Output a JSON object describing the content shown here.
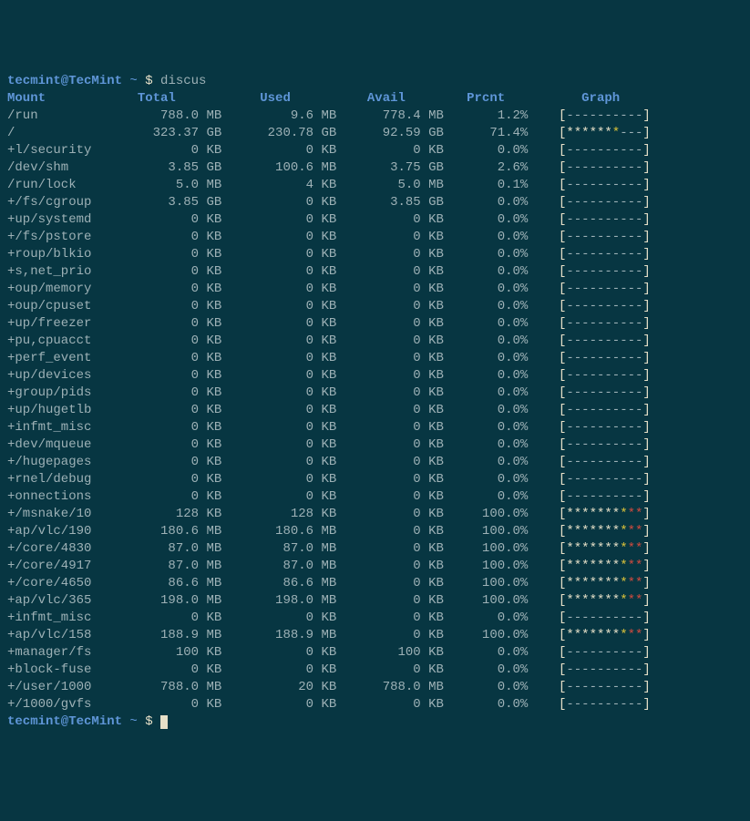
{
  "prompt": {
    "user": "tecmint@TecMint",
    "path": "~",
    "sep": "$",
    "cmd": "discus"
  },
  "headers": {
    "mount": "Mount",
    "total": "Total",
    "used": "Used",
    "avail": "Avail",
    "prcnt": "Prcnt",
    "graph": "Graph"
  },
  "rows": [
    {
      "mount": "/run",
      "total": "788.0 MB",
      "used": "9.6 MB",
      "avail": "778.4 MB",
      "prcnt": "1.2%",
      "gpat": "----------"
    },
    {
      "mount": "/",
      "total": "323.37 GB",
      "used": "230.78 GB",
      "avail": "92.59 GB",
      "prcnt": "71.4%",
      "gpat": "wwwwwwy---"
    },
    {
      "mount": "+l/security",
      "total": "0 KB",
      "used": "0 KB",
      "avail": "0 KB",
      "prcnt": "0.0%",
      "gpat": "----------"
    },
    {
      "mount": "/dev/shm",
      "total": "3.85 GB",
      "used": "100.6 MB",
      "avail": "3.75 GB",
      "prcnt": "2.6%",
      "gpat": "----------"
    },
    {
      "mount": "/run/lock",
      "total": "5.0 MB",
      "used": "4 KB",
      "avail": "5.0 MB",
      "prcnt": "0.1%",
      "gpat": "----------"
    },
    {
      "mount": "+/fs/cgroup",
      "total": "3.85 GB",
      "used": "0 KB",
      "avail": "3.85 GB",
      "prcnt": "0.0%",
      "gpat": "----------"
    },
    {
      "mount": "+up/systemd",
      "total": "0 KB",
      "used": "0 KB",
      "avail": "0 KB",
      "prcnt": "0.0%",
      "gpat": "----------"
    },
    {
      "mount": "+/fs/pstore",
      "total": "0 KB",
      "used": "0 KB",
      "avail": "0 KB",
      "prcnt": "0.0%",
      "gpat": "----------"
    },
    {
      "mount": "+roup/blkio",
      "total": "0 KB",
      "used": "0 KB",
      "avail": "0 KB",
      "prcnt": "0.0%",
      "gpat": "----------"
    },
    {
      "mount": "+s,net_prio",
      "total": "0 KB",
      "used": "0 KB",
      "avail": "0 KB",
      "prcnt": "0.0%",
      "gpat": "----------"
    },
    {
      "mount": "+oup/memory",
      "total": "0 KB",
      "used": "0 KB",
      "avail": "0 KB",
      "prcnt": "0.0%",
      "gpat": "----------"
    },
    {
      "mount": "+oup/cpuset",
      "total": "0 KB",
      "used": "0 KB",
      "avail": "0 KB",
      "prcnt": "0.0%",
      "gpat": "----------"
    },
    {
      "mount": "+up/freezer",
      "total": "0 KB",
      "used": "0 KB",
      "avail": "0 KB",
      "prcnt": "0.0%",
      "gpat": "----------"
    },
    {
      "mount": "+pu,cpuacct",
      "total": "0 KB",
      "used": "0 KB",
      "avail": "0 KB",
      "prcnt": "0.0%",
      "gpat": "----------"
    },
    {
      "mount": "+perf_event",
      "total": "0 KB",
      "used": "0 KB",
      "avail": "0 KB",
      "prcnt": "0.0%",
      "gpat": "----------"
    },
    {
      "mount": "+up/devices",
      "total": "0 KB",
      "used": "0 KB",
      "avail": "0 KB",
      "prcnt": "0.0%",
      "gpat": "----------"
    },
    {
      "mount": "+group/pids",
      "total": "0 KB",
      "used": "0 KB",
      "avail": "0 KB",
      "prcnt": "0.0%",
      "gpat": "----------"
    },
    {
      "mount": "+up/hugetlb",
      "total": "0 KB",
      "used": "0 KB",
      "avail": "0 KB",
      "prcnt": "0.0%",
      "gpat": "----------"
    },
    {
      "mount": "+infmt_misc",
      "total": "0 KB",
      "used": "0 KB",
      "avail": "0 KB",
      "prcnt": "0.0%",
      "gpat": "----------"
    },
    {
      "mount": "+dev/mqueue",
      "total": "0 KB",
      "used": "0 KB",
      "avail": "0 KB",
      "prcnt": "0.0%",
      "gpat": "----------"
    },
    {
      "mount": "+/hugepages",
      "total": "0 KB",
      "used": "0 KB",
      "avail": "0 KB",
      "prcnt": "0.0%",
      "gpat": "----------"
    },
    {
      "mount": "+rnel/debug",
      "total": "0 KB",
      "used": "0 KB",
      "avail": "0 KB",
      "prcnt": "0.0%",
      "gpat": "----------"
    },
    {
      "mount": "+onnections",
      "total": "0 KB",
      "used": "0 KB",
      "avail": "0 KB",
      "prcnt": "0.0%",
      "gpat": "----------"
    },
    {
      "mount": "+/msnake/10",
      "total": "128 KB",
      "used": "128 KB",
      "avail": "0 KB",
      "prcnt": "100.0%",
      "gpat": "wwwwwwwyrr"
    },
    {
      "mount": "+ap/vlc/190",
      "total": "180.6 MB",
      "used": "180.6 MB",
      "avail": "0 KB",
      "prcnt": "100.0%",
      "gpat": "wwwwwwwyrr"
    },
    {
      "mount": "+/core/4830",
      "total": "87.0 MB",
      "used": "87.0 MB",
      "avail": "0 KB",
      "prcnt": "100.0%",
      "gpat": "wwwwwwwyrr"
    },
    {
      "mount": "+/core/4917",
      "total": "87.0 MB",
      "used": "87.0 MB",
      "avail": "0 KB",
      "prcnt": "100.0%",
      "gpat": "wwwwwwwyrr"
    },
    {
      "mount": "+/core/4650",
      "total": "86.6 MB",
      "used": "86.6 MB",
      "avail": "0 KB",
      "prcnt": "100.0%",
      "gpat": "wwwwwwwyrr"
    },
    {
      "mount": "+ap/vlc/365",
      "total": "198.0 MB",
      "used": "198.0 MB",
      "avail": "0 KB",
      "prcnt": "100.0%",
      "gpat": "wwwwwwwyrr"
    },
    {
      "mount": "+infmt_misc",
      "total": "0 KB",
      "used": "0 KB",
      "avail": "0 KB",
      "prcnt": "0.0%",
      "gpat": "----------"
    },
    {
      "mount": "+ap/vlc/158",
      "total": "188.9 MB",
      "used": "188.9 MB",
      "avail": "0 KB",
      "prcnt": "100.0%",
      "gpat": "wwwwwwwyrr"
    },
    {
      "mount": "+manager/fs",
      "total": "100 KB",
      "used": "0 KB",
      "avail": "100 KB",
      "prcnt": "0.0%",
      "gpat": "----------"
    },
    {
      "mount": "+block-fuse",
      "total": "0 KB",
      "used": "0 KB",
      "avail": "0 KB",
      "prcnt": "0.0%",
      "gpat": "----------"
    },
    {
      "mount": "+/user/1000",
      "total": "788.0 MB",
      "used": "20 KB",
      "avail": "788.0 MB",
      "prcnt": "0.0%",
      "gpat": "----------"
    },
    {
      "mount": "+/1000/gvfs",
      "total": "0 KB",
      "used": "0 KB",
      "avail": "0 KB",
      "prcnt": "0.0%",
      "gpat": "----------"
    }
  ],
  "colors": {
    "bg": "#073642",
    "text": "#9db1b6",
    "header": "#5f96d8",
    "white": "#e6e0c8",
    "yellow": "#dcc33a",
    "red": "#d34b3f"
  },
  "widths": {
    "mount": 11,
    "total": 17,
    "used": 15,
    "avail": 14,
    "prcnt": 11,
    "graph": 20
  },
  "graph_chars": {
    "bracket_open": "[",
    "bracket_close": "]",
    "star": "*",
    "dash": "-"
  }
}
